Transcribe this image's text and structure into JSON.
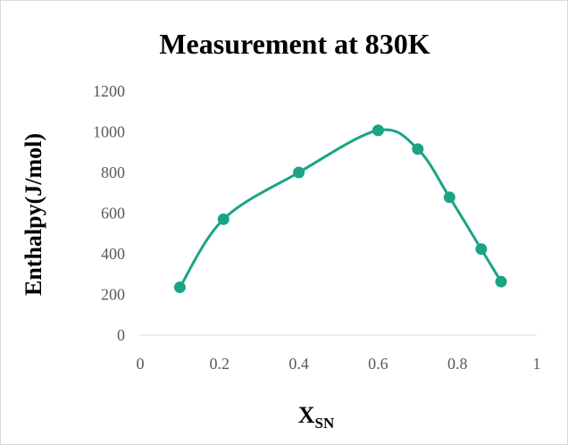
{
  "chart_data": {
    "type": "scatter",
    "title": "Measurement at 830K",
    "xlabel": "X",
    "xlabel_subscript": "SN",
    "ylabel": "Enthalpy(J/mol)",
    "xlim": [
      0,
      1
    ],
    "ylim": [
      0,
      1200
    ],
    "x_ticks": [
      "0",
      "0.2",
      "0.4",
      "0.6",
      "0.8",
      "1"
    ],
    "y_ticks": [
      "0",
      "200",
      "400",
      "600",
      "800",
      "1000",
      "1200"
    ],
    "grid": false,
    "legend": "none",
    "smooth_line": true,
    "series_color": "#1aa485",
    "series": [
      {
        "points": [
          {
            "x": 0.1,
            "y": 235
          },
          {
            "x": 0.21,
            "y": 570
          },
          {
            "x": 0.4,
            "y": 800
          },
          {
            "x": 0.6,
            "y": 1007
          },
          {
            "x": 0.7,
            "y": 915
          },
          {
            "x": 0.78,
            "y": 678
          },
          {
            "x": 0.86,
            "y": 423
          },
          {
            "x": 0.91,
            "y": 263
          }
        ]
      }
    ]
  }
}
